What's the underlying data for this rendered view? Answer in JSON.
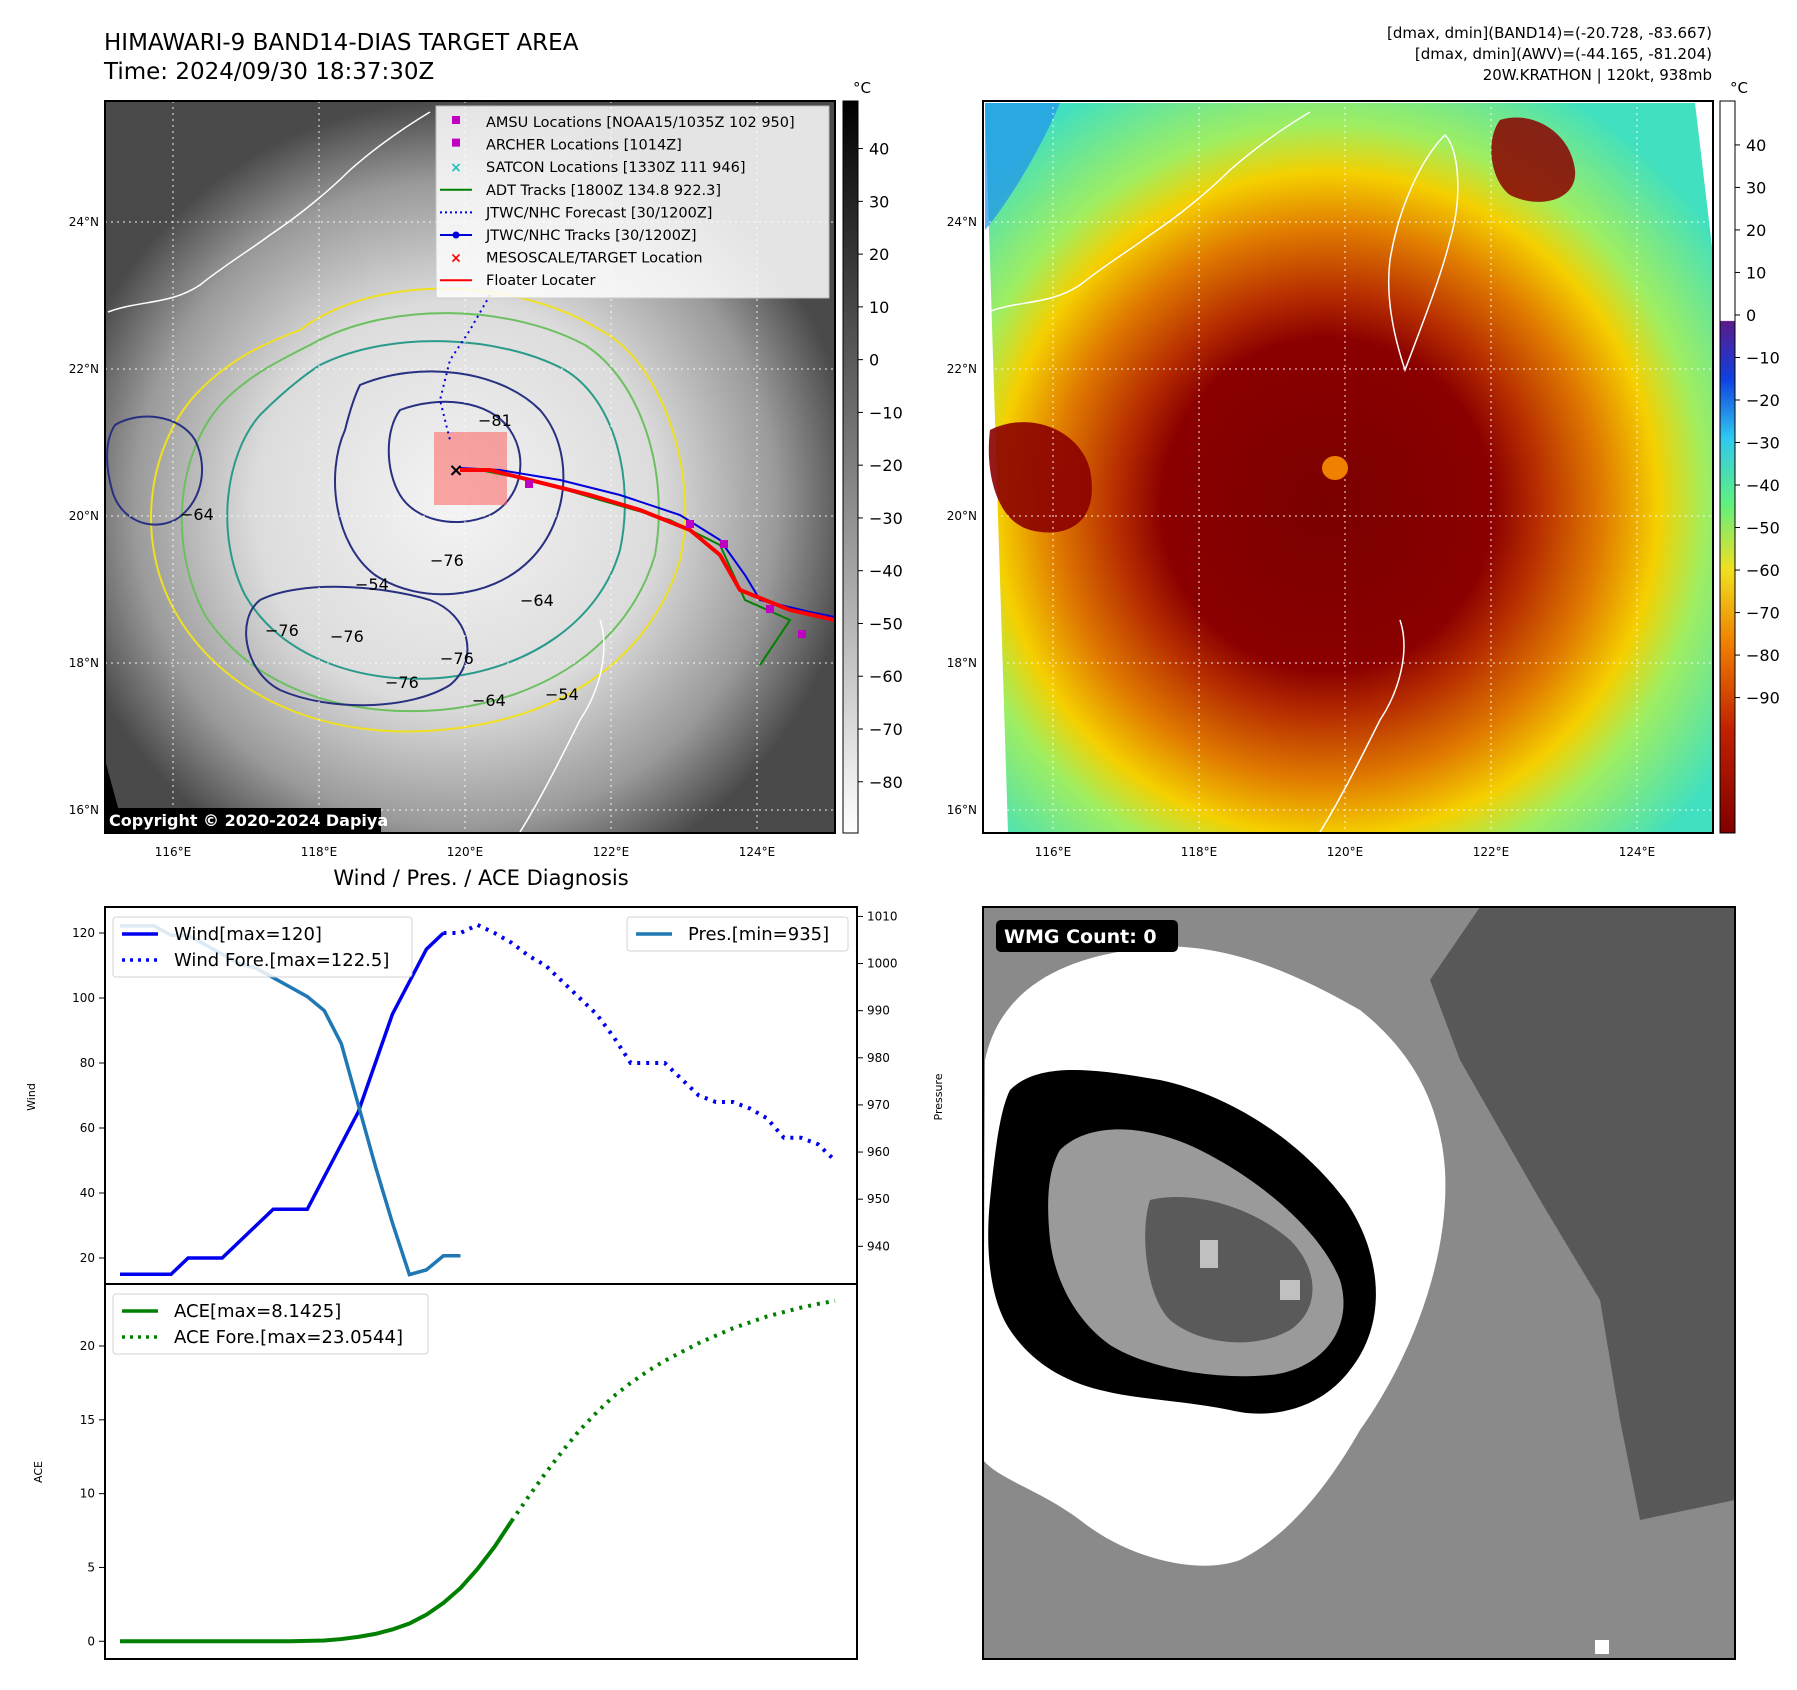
{
  "header": {
    "title_line1": "HIMAWARI-9 BAND14-DIAS TARGET AREA",
    "title_line2": "Time: 2024/09/30 18:37:30Z",
    "right_line1": "[dmax, dmin](BAND14)=(-20.728, -83.667)",
    "right_line2": "[dmax, dmin](AWV)=(-44.165, -81.204)",
    "right_line3": "20W.KRATHON | 120kt, 938mb"
  },
  "map_axes": {
    "lon_labels": [
      "116°E",
      "118°E",
      "120°E",
      "122°E",
      "124°E"
    ],
    "lat_labels": [
      "24°N",
      "22°N",
      "20°N",
      "18°N",
      "16°N"
    ]
  },
  "ir_panel": {
    "colorbar_unit": "°C",
    "colorbar_ticks": [
      "40",
      "30",
      "20",
      "10",
      "0",
      "−10",
      "−20",
      "−30",
      "−40",
      "−50",
      "−60",
      "−70",
      "−80"
    ],
    "contour_labels": [
      "−81",
      "−76",
      "−76",
      "−76",
      "−76",
      "−64",
      "−64",
      "−54",
      "−54",
      "−76",
      "−64"
    ],
    "copyright": "Copyright © 2020-2024 Dapiya",
    "legend": [
      {
        "label": "AMSU Locations [NOAA15/1035Z 102 950]",
        "color": "#c000c0",
        "marker": "square"
      },
      {
        "label": "ARCHER Locations [1014Z]",
        "color": "#c000c0",
        "marker": "square"
      },
      {
        "label": "SATCON Locations [1330Z 111 946]",
        "color": "#20c0c0",
        "marker": "x"
      },
      {
        "label": "ADT Tracks [1800Z 134.8 922.3]",
        "color": "#008000",
        "marker": "line"
      },
      {
        "label": "JTWC/NHC Forecast [30/1200Z]",
        "color": "#0000dd",
        "marker": "dotted"
      },
      {
        "label": "JTWC/NHC Tracks [30/1200Z]",
        "color": "#0000dd",
        "marker": "line-dot"
      },
      {
        "label": "MESOSCALE/TARGET Location",
        "color": "#ff0000",
        "marker": "x"
      },
      {
        "label": "Floater Locater",
        "color": "#ff0000",
        "marker": "line"
      }
    ]
  },
  "wv_panel": {
    "colorbar_unit": "°C",
    "colorbar_ticks": [
      "40",
      "30",
      "20",
      "10",
      "0",
      "−10",
      "−20",
      "−30",
      "−40",
      "−50",
      "−60",
      "−70",
      "−80",
      "−90"
    ]
  },
  "wmg_panel": {
    "badge": "WMG Count: 0"
  },
  "chart_data": [
    {
      "type": "line",
      "title": "Wind / Pres. / ACE Diagnosis",
      "ylabel": "Wind",
      "y2label": "Pressure",
      "ylim": [
        12,
        128
      ],
      "y2lim": [
        932,
        1012
      ],
      "yticks": [
        20,
        40,
        60,
        80,
        100,
        120
      ],
      "y2ticks": [
        940,
        950,
        960,
        970,
        980,
        990,
        1000,
        1010
      ],
      "series": [
        {
          "name": "Wind[max=120]",
          "axis": "left",
          "color": "#0000ee",
          "style": "solid",
          "x": [
            0,
            1,
            2,
            3,
            4,
            5,
            6,
            7,
            8,
            9,
            10,
            11,
            12,
            13,
            14,
            15,
            16,
            17,
            18,
            19
          ],
          "values": [
            15,
            15,
            15,
            15,
            20,
            20,
            20,
            25,
            30,
            35,
            35,
            35,
            45,
            55,
            65,
            80,
            95,
            105,
            115,
            120
          ]
        },
        {
          "name": "Wind Fore.[max=122.5]",
          "axis": "left",
          "color": "#0000ee",
          "style": "dotted",
          "x": [
            19,
            20,
            21,
            22,
            23,
            24,
            25,
            26,
            27,
            28,
            29,
            30,
            31,
            32,
            33,
            34,
            35,
            36,
            37,
            38,
            39,
            40,
            41,
            42
          ],
          "values": [
            120,
            120,
            122.5,
            120,
            117,
            113,
            110,
            105,
            100,
            95,
            88,
            80,
            80,
            80,
            75,
            70,
            68,
            68,
            66,
            63,
            57,
            57,
            55,
            50
          ]
        },
        {
          "name": "Pres.[min=935]",
          "axis": "right",
          "color": "#1f77b4",
          "style": "solid",
          "x": [
            0,
            1,
            2,
            3,
            4,
            5,
            6,
            7,
            8,
            9,
            10,
            11,
            12,
            13,
            14,
            15,
            16,
            17,
            18,
            19,
            20
          ],
          "values": [
            1008,
            1008,
            1008,
            1006,
            1006,
            1004,
            1002,
            1000,
            999,
            997,
            995,
            993,
            990,
            983,
            970,
            957,
            945,
            934,
            935,
            938,
            938
          ]
        }
      ],
      "legend": [
        "Wind[max=120]",
        "Wind Fore.[max=122.5]",
        "Pres.[min=935]"
      ]
    },
    {
      "type": "line",
      "ylabel": "ACE",
      "ylim": [
        -1.2,
        24.2
      ],
      "yticks": [
        0,
        5,
        10,
        15,
        20
      ],
      "series": [
        {
          "name": "ACE[max=8.1425]",
          "color": "#008000",
          "style": "solid",
          "x": [
            0,
            2,
            4,
            6,
            8,
            10,
            12,
            13,
            14,
            15,
            16,
            17,
            18,
            19,
            20,
            21,
            22,
            23
          ],
          "values": [
            0,
            0,
            0,
            0,
            0,
            0,
            0.05,
            0.15,
            0.3,
            0.5,
            0.8,
            1.2,
            1.8,
            2.6,
            3.6,
            4.9,
            6.4,
            8.1425
          ]
        },
        {
          "name": "ACE Fore.[max=23.0544]",
          "color": "#008000",
          "style": "dotted",
          "x": [
            23,
            24,
            25,
            26,
            27,
            28,
            29,
            30,
            31,
            32,
            33,
            34,
            35,
            36,
            37,
            38,
            39,
            40,
            41,
            42
          ],
          "values": [
            8.1425,
            9.8,
            11.4,
            12.9,
            14.3,
            15.5,
            16.6,
            17.5,
            18.3,
            19.0,
            19.6,
            20.2,
            20.7,
            21.2,
            21.6,
            22.0,
            22.3,
            22.6,
            22.85,
            23.0544
          ]
        }
      ],
      "legend": [
        "ACE[max=8.1425]",
        "ACE Fore.[max=23.0544]"
      ]
    }
  ]
}
